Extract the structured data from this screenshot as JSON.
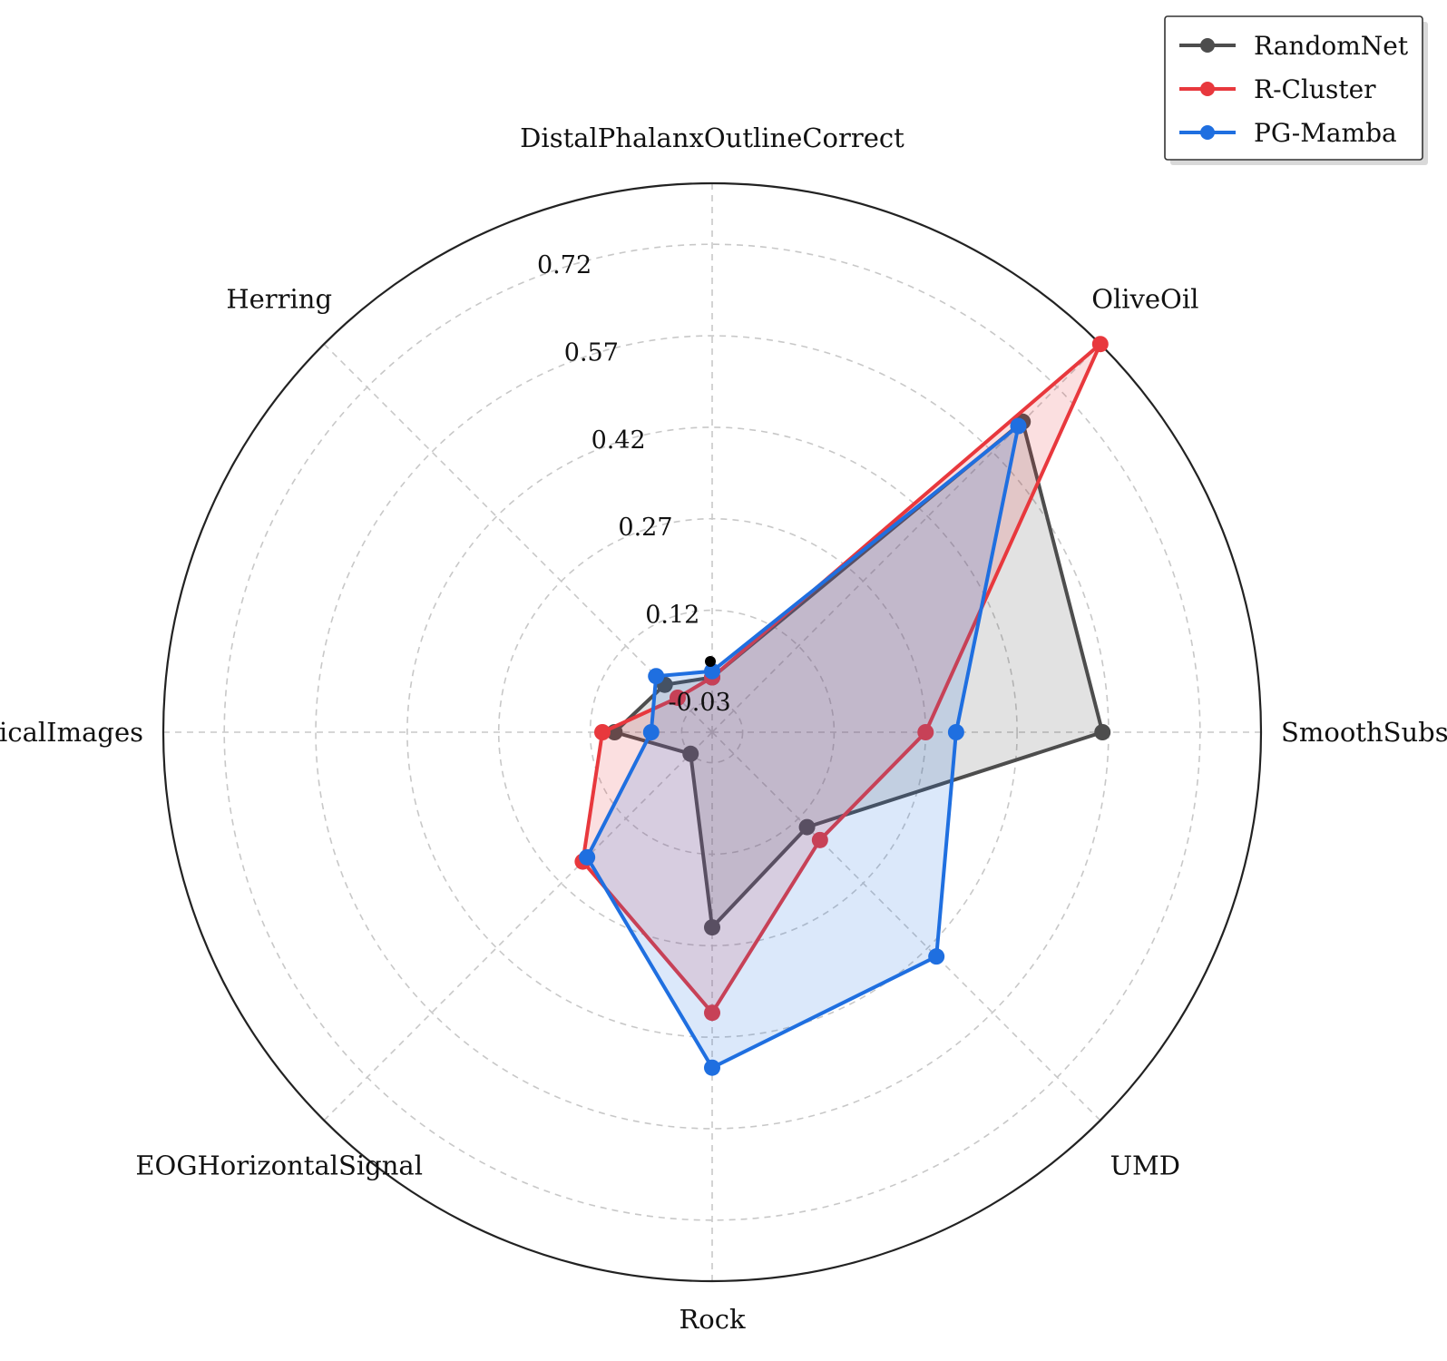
{
  "chart_data": {
    "type": "radar",
    "categories": [
      "DistalPhalanxOutlineCorrect",
      "OliveOil",
      "SmoothSubspace",
      "UMD",
      "Rock",
      "EOGHorizontalSignal",
      "MedicalImages",
      "Herring"
    ],
    "r_ticks": [
      "-0.03",
      "0.12",
      "0.27",
      "0.42",
      "0.57",
      "0.72"
    ],
    "r_tick_values": [
      -0.03,
      0.12,
      0.27,
      0.42,
      0.57,
      0.72
    ],
    "r_min": -0.08,
    "r_max": 0.82,
    "grid": true,
    "legend_position": "top-right",
    "series": [
      {
        "name": "RandomNet",
        "color": "#4d4d4d",
        "values": [
          0.01,
          0.64,
          0.56,
          0.14,
          0.24,
          -0.03,
          0.08,
          0.03
        ]
      },
      {
        "name": "R-Cluster",
        "color": "#e8383d",
        "values": [
          0.01,
          0.82,
          0.27,
          0.17,
          0.38,
          0.22,
          0.1,
          0.0
        ]
      },
      {
        "name": "PG-Mamba",
        "color": "#1f6fe0",
        "values": [
          0.02,
          0.63,
          0.32,
          0.44,
          0.47,
          0.21,
          0.02,
          0.05
        ]
      }
    ]
  }
}
